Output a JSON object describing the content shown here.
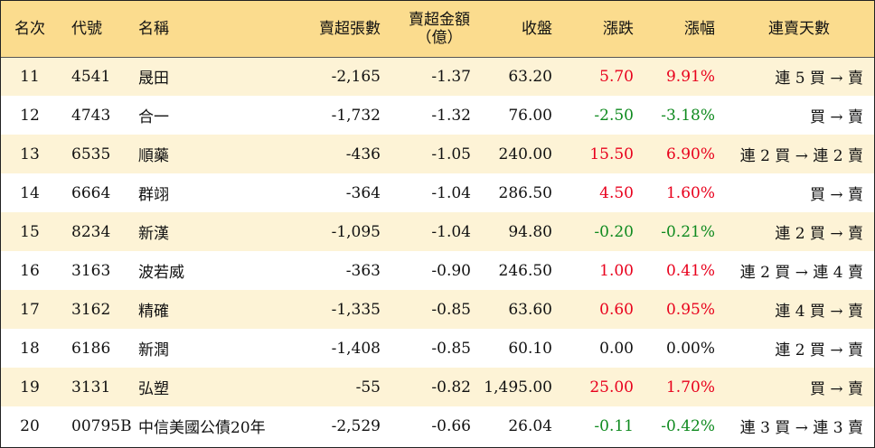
{
  "table": {
    "headers": {
      "rank": "名次",
      "code": "代號",
      "name": "名稱",
      "net_sell_shares": "賣超張數",
      "net_sell_amount_line1": "賣超金額",
      "net_sell_amount_line2": "（億）",
      "close": "收盤",
      "change": "漲跌",
      "change_pct": "漲幅",
      "consec_days": "連賣天數"
    },
    "rows": [
      {
        "rank": "11",
        "code": "4541",
        "name": "晟田",
        "shares": "-2,165",
        "amount": "-1.37",
        "close": "63.20",
        "change": "5.70",
        "pct": "9.91%",
        "days": "連 5 買 → 賣",
        "tone": "red"
      },
      {
        "rank": "12",
        "code": "4743",
        "name": "合一",
        "shares": "-1,732",
        "amount": "-1.32",
        "close": "76.00",
        "change": "-2.50",
        "pct": "-3.18%",
        "days": "買 → 賣",
        "tone": "green"
      },
      {
        "rank": "13",
        "code": "6535",
        "name": "順藥",
        "shares": "-436",
        "amount": "-1.05",
        "close": "240.00",
        "change": "15.50",
        "pct": "6.90%",
        "days": "連 2 買 → 連 2 賣",
        "tone": "red"
      },
      {
        "rank": "14",
        "code": "6664",
        "name": "群翊",
        "shares": "-364",
        "amount": "-1.04",
        "close": "286.50",
        "change": "4.50",
        "pct": "1.60%",
        "days": "買 → 賣",
        "tone": "red"
      },
      {
        "rank": "15",
        "code": "8234",
        "name": "新漢",
        "shares": "-1,095",
        "amount": "-1.04",
        "close": "94.80",
        "change": "-0.20",
        "pct": "-0.21%",
        "days": "連 2 買 → 賣",
        "tone": "green"
      },
      {
        "rank": "16",
        "code": "3163",
        "name": "波若威",
        "shares": "-363",
        "amount": "-0.90",
        "close": "246.50",
        "change": "1.00",
        "pct": "0.41%",
        "days": "連 2 買 → 連 4 賣",
        "tone": "red"
      },
      {
        "rank": "17",
        "code": "3162",
        "name": "精確",
        "shares": "-1,335",
        "amount": "-0.85",
        "close": "63.60",
        "change": "0.60",
        "pct": "0.95%",
        "days": "連 4 買 → 賣",
        "tone": "red"
      },
      {
        "rank": "18",
        "code": "6186",
        "name": "新潤",
        "shares": "-1,408",
        "amount": "-0.85",
        "close": "60.10",
        "change": "0.00",
        "pct": "0.00%",
        "days": "連 2 買 → 賣",
        "tone": "black"
      },
      {
        "rank": "19",
        "code": "3131",
        "name": "弘塑",
        "shares": "-55",
        "amount": "-0.82",
        "close": "1,495.00",
        "change": "25.00",
        "pct": "1.70%",
        "days": "買 → 賣",
        "tone": "red"
      },
      {
        "rank": "20",
        "code": "00795B",
        "name": "中信美國公債20年",
        "shares": "-2,529",
        "amount": "-0.66",
        "close": "26.04",
        "change": "-0.11",
        "pct": "-0.42%",
        "days": "連 3 買 → 連 3 賣",
        "tone": "green"
      }
    ]
  },
  "colors": {
    "header_bg": "#fbdc8e",
    "odd_row_bg": "#fdf3d6",
    "even_row_bg": "#ffffff",
    "up": "#e8001c",
    "down": "#0f8a1f"
  }
}
